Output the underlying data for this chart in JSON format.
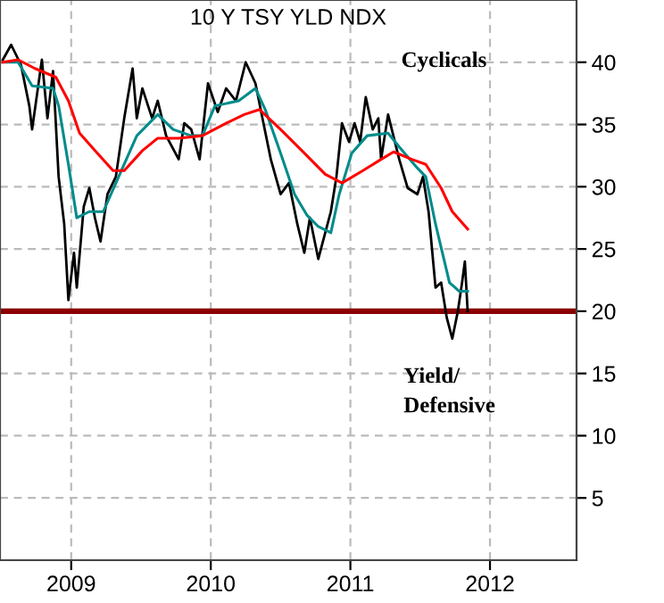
{
  "chart_data": {
    "type": "line",
    "title": "10 Y TSY YLD NDX",
    "series": [
      {
        "color": "#000000",
        "x": [
          2008.51,
          2008.57,
          2008.64,
          2008.7,
          2008.72,
          2008.79,
          2008.83,
          2008.87,
          2008.91,
          2008.95,
          2008.98,
          2009.02,
          2009.04,
          2009.09,
          2009.13,
          2009.17,
          2009.21,
          2009.26,
          2009.32,
          2009.38,
          2009.44,
          2009.47,
          2009.51,
          2009.58,
          2009.62,
          2009.68,
          2009.77,
          2009.81,
          2009.86,
          2009.92,
          2009.98,
          2010.05,
          2010.11,
          2010.18,
          2010.25,
          2010.32,
          2010.37,
          2010.43,
          2010.5,
          2010.56,
          2010.62,
          2010.67,
          2010.71,
          2010.77,
          2010.86,
          2010.9,
          2010.94,
          2010.99,
          2011.03,
          2011.07,
          2011.11,
          2011.16,
          2011.2,
          2011.22,
          2011.27,
          2011.35,
          2011.41,
          2011.48,
          2011.52,
          2011.56,
          2011.61,
          2011.65,
          2011.69,
          2011.73,
          2011.77,
          2011.8,
          2011.82,
          2011.84
        ],
        "values": [
          40.2,
          41.4,
          39.8,
          36.5,
          34.6,
          40.2,
          35.5,
          39.3,
          30.8,
          27.0,
          20.9,
          24.7,
          21.9,
          28.4,
          29.9,
          27.5,
          25.6,
          29.4,
          30.8,
          35.5,
          39.5,
          35.5,
          37.9,
          35.5,
          36.9,
          34.1,
          32.2,
          35.1,
          34.6,
          32.2,
          38.3,
          36.0,
          37.9,
          36.9,
          40.0,
          38.3,
          35.5,
          32.2,
          29.4,
          30.3,
          27.0,
          24.7,
          27.5,
          24.2,
          28.0,
          30.8,
          35.1,
          33.6,
          35.1,
          33.6,
          37.2,
          34.6,
          35.5,
          32.2,
          35.8,
          32.2,
          29.9,
          29.4,
          30.8,
          28.0,
          21.9,
          22.3,
          19.5,
          17.8,
          20.0,
          22.3,
          24.0,
          20.0
        ]
      },
      {
        "color": "#008b8b",
        "x": [
          2008.51,
          2008.62,
          2008.72,
          2008.87,
          2008.91,
          2008.98,
          2009.04,
          2009.13,
          2009.23,
          2009.34,
          2009.47,
          2009.62,
          2009.73,
          2009.86,
          2009.94,
          2010.03,
          2010.2,
          2010.32,
          2010.39,
          2010.5,
          2010.6,
          2010.69,
          2010.77,
          2010.86,
          2010.92,
          2011.01,
          2011.12,
          2011.27,
          2011.35,
          2011.48,
          2011.54,
          2011.61,
          2011.71,
          2011.78,
          2011.84
        ],
        "values": [
          40.0,
          40.0,
          38.1,
          37.9,
          36.5,
          31.8,
          27.5,
          28.0,
          28.0,
          30.8,
          34.1,
          35.8,
          34.6,
          34.1,
          34.1,
          36.5,
          36.9,
          37.9,
          36.2,
          32.7,
          29.4,
          27.7,
          26.8,
          26.3,
          29.4,
          32.7,
          34.1,
          34.3,
          33.2,
          31.5,
          30.8,
          27.0,
          22.3,
          21.6,
          21.6
        ]
      },
      {
        "color": "#ff0000",
        "x": [
          2008.51,
          2008.62,
          2008.74,
          2008.89,
          2008.98,
          2009.06,
          2009.17,
          2009.3,
          2009.38,
          2009.51,
          2009.62,
          2009.77,
          2009.94,
          2010.11,
          2010.24,
          2010.35,
          2010.5,
          2010.67,
          2010.82,
          2010.94,
          2011.09,
          2011.22,
          2011.31,
          2011.44,
          2011.54,
          2011.65,
          2011.73,
          2011.84
        ],
        "values": [
          40.0,
          40.2,
          39.5,
          38.8,
          36.9,
          34.3,
          32.9,
          31.3,
          31.3,
          32.9,
          33.9,
          33.9,
          34.1,
          35.1,
          35.8,
          36.2,
          34.6,
          32.7,
          31.0,
          30.3,
          31.3,
          32.2,
          32.8,
          32.2,
          31.8,
          29.9,
          28.0,
          26.6
        ]
      }
    ],
    "xlim": [
      2008.49,
      2012.62
    ],
    "xticks": [
      2009,
      2010,
      2011,
      2012
    ],
    "ylim": [
      0,
      45
    ],
    "yticks": [
      5,
      10,
      15,
      20,
      25,
      30,
      35,
      40
    ],
    "ref_lines": [
      {
        "axis": "y",
        "value": 20,
        "color": "#8b0000"
      }
    ],
    "annotations": [
      "Cyclicals",
      "Yield/\nDefensive"
    ],
    "grid": true,
    "legend": false,
    "marker": "none",
    "line_style": "solid"
  }
}
